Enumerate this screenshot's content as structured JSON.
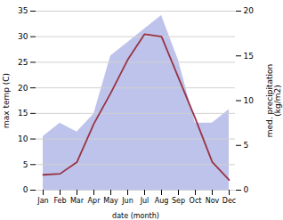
{
  "chart_data": {
    "type": "line",
    "xlabel": "date (month)",
    "ylabel": "max temp (C)",
    "y2label": "med. precipitation\n(kg/m2)",
    "categories": [
      "Jan",
      "Feb",
      "Mar",
      "Apr",
      "May",
      "Jun",
      "Jul",
      "Aug",
      "Sep",
      "Oct",
      "Nov",
      "Dec"
    ],
    "series": [
      {
        "type": "line",
        "color": "#993344",
        "values": [
          3.0,
          3.2,
          5.5,
          13.0,
          19.0,
          25.5,
          30.5,
          30.0,
          22.0,
          14.0,
          5.5,
          2.0
        ]
      },
      {
        "type": "area",
        "axis": "y2",
        "color": "#b3b9e8",
        "values": [
          6.0,
          7.5,
          6.5,
          8.5,
          15.0,
          16.5,
          18.0,
          19.5,
          14.5,
          7.5,
          7.5,
          9.0
        ]
      }
    ],
    "ylim": [
      0,
      35
    ],
    "yticks": [
      0,
      5,
      10,
      15,
      20,
      25,
      30,
      35
    ],
    "y2lim": [
      0,
      20
    ],
    "y2ticks": [
      0,
      5,
      10,
      15,
      20
    ],
    "grid": true
  }
}
